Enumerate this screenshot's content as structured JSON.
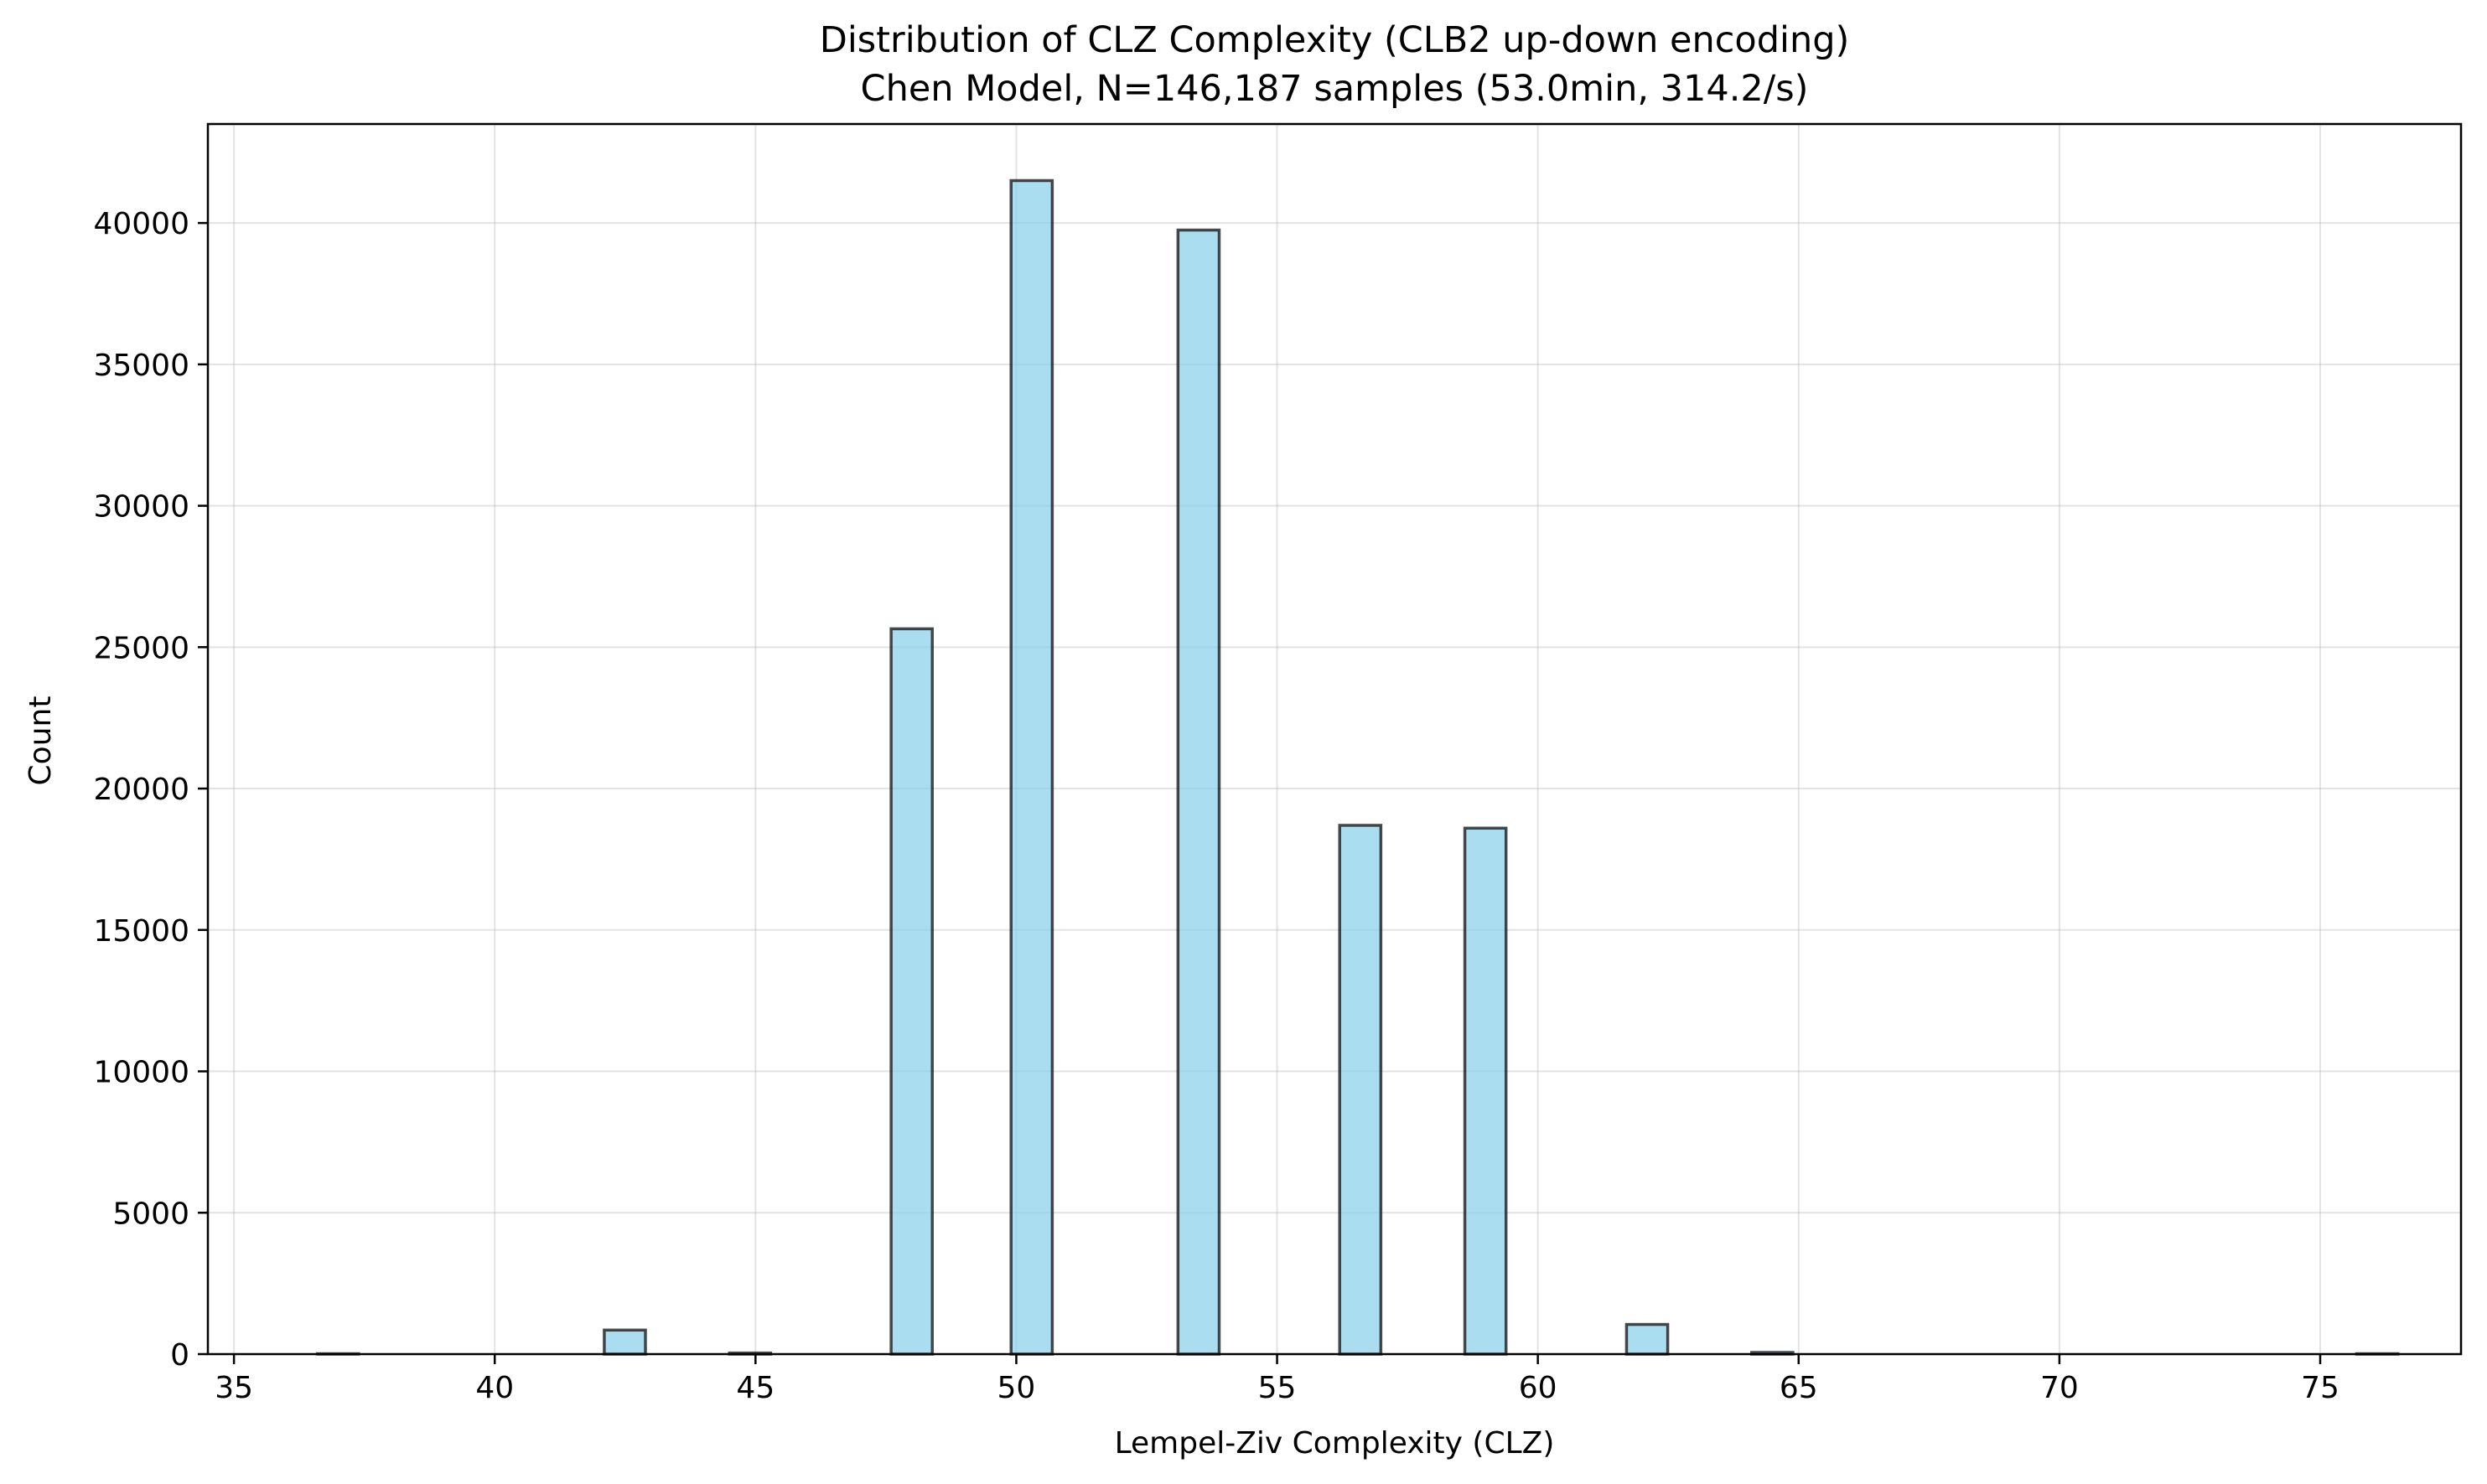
{
  "chart_data": {
    "type": "bar",
    "title": "Distribution of CLZ Complexity (CLB2 up-down encoding)",
    "subtitle": "Chen Model, N=146,187 samples (53.0min, 314.2/s)",
    "xlabel": "Lempel-Ziv Complexity (CLZ)",
    "ylabel": "Count",
    "xlim": [
      34.5,
      77.7
    ],
    "ylim": [
      0,
      43500
    ],
    "xticks": [
      35,
      40,
      45,
      50,
      55,
      60,
      65,
      70,
      75
    ],
    "yticks": [
      0,
      5000,
      10000,
      15000,
      20000,
      25000,
      30000,
      35000,
      40000
    ],
    "grid": true,
    "bin_width": 0.79,
    "bins": [
      {
        "x0": 36.6,
        "count": 0
      },
      {
        "x0": 42.1,
        "count": 850
      },
      {
        "x0": 44.5,
        "count": 40
      },
      {
        "x0": 47.6,
        "count": 25650
      },
      {
        "x0": 49.9,
        "count": 41500
      },
      {
        "x0": 53.1,
        "count": 39750
      },
      {
        "x0": 56.2,
        "count": 18700
      },
      {
        "x0": 58.6,
        "count": 18600
      },
      {
        "x0": 61.7,
        "count": 1050
      },
      {
        "x0": 64.1,
        "count": 60
      },
      {
        "x0": 75.7,
        "count": 0
      }
    ],
    "colors": {
      "bar_fill": "#87ceeb",
      "bar_edge": "#000000"
    }
  }
}
